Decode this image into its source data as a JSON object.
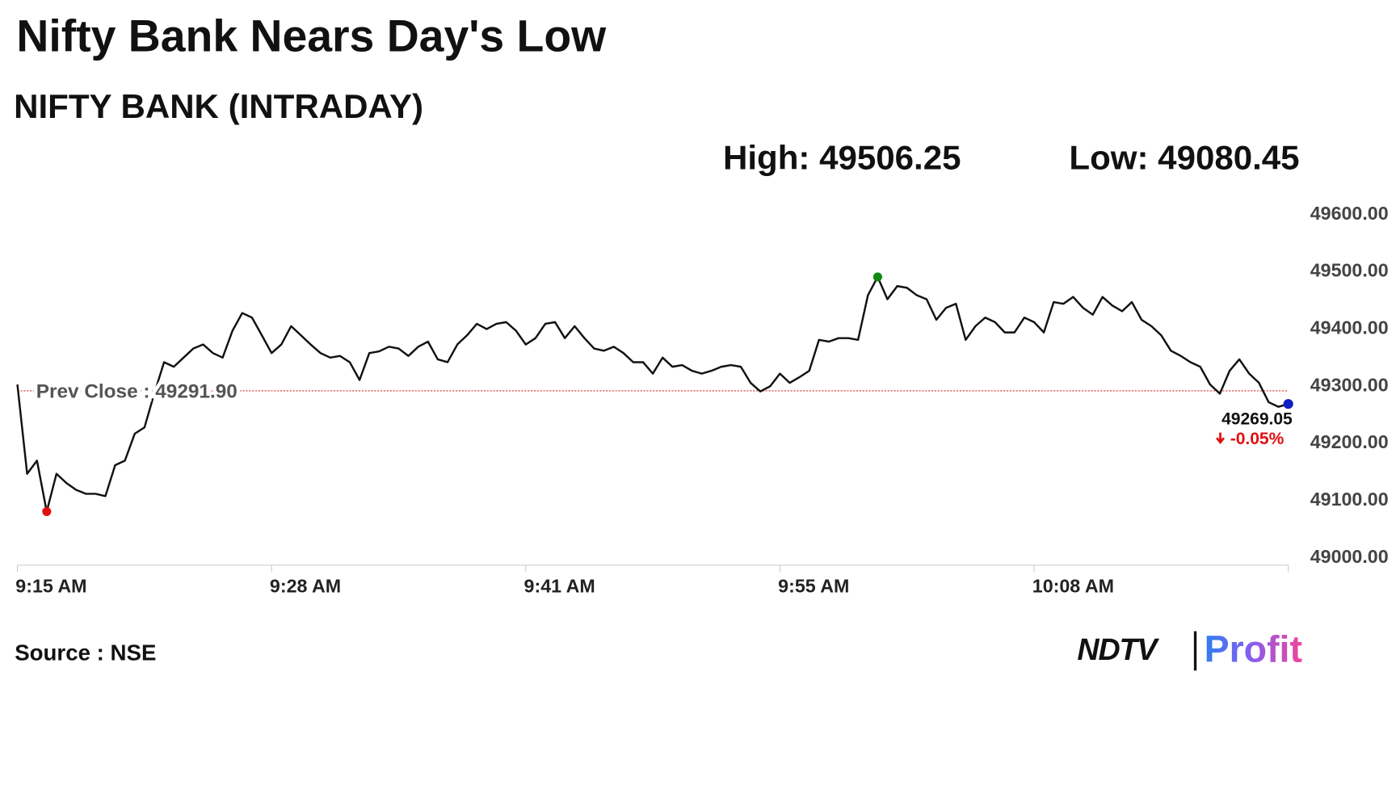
{
  "chart_data": {
    "type": "line",
    "title": "Nifty Bank Nears Day's Low",
    "subtitle": "NIFTY BANK (INTRADAY)",
    "high_label": "High: 49506.25",
    "low_label": "Low: 49080.45",
    "source": "Source : NSE",
    "logo": {
      "brand": "NDTV",
      "product": "Profit"
    },
    "color": "#111111",
    "categories": [
      "9:15 AM",
      null,
      null,
      null,
      null,
      null,
      null,
      null,
      null,
      null,
      null,
      null,
      null,
      null,
      null,
      null,
      null,
      null,
      null,
      null,
      null,
      null,
      null,
      null,
      null,
      null,
      "9:28 AM",
      null,
      null,
      null,
      null,
      null,
      null,
      null,
      null,
      null,
      null,
      null,
      null,
      null,
      null,
      null,
      null,
      null,
      null,
      null,
      null,
      null,
      null,
      null,
      null,
      null,
      "9:41 AM",
      null,
      null,
      null,
      null,
      null,
      null,
      null,
      null,
      null,
      null,
      null,
      null,
      null,
      null,
      null,
      null,
      null,
      null,
      null,
      null,
      null,
      null,
      null,
      null,
      null,
      "9:55 AM",
      null,
      null,
      null,
      null,
      null,
      null,
      null,
      null,
      null,
      null,
      null,
      null,
      null,
      null,
      null,
      null,
      null,
      null,
      null,
      null,
      null,
      null,
      null,
      null,
      null,
      "10:08 AM",
      null,
      null,
      null,
      null,
      null,
      null,
      null,
      null,
      null,
      null,
      null,
      null,
      null,
      null,
      null,
      null,
      null,
      null,
      null,
      null,
      null,
      null,
      null,
      null,
      null,
      null
    ],
    "values": [
      49303,
      49147,
      49170,
      49081,
      49147,
      49131,
      49119,
      49112,
      49112,
      49108,
      49162,
      49170,
      49217,
      49228,
      49287,
      49342,
      49334,
      49350,
      49366,
      49373,
      49358,
      49350,
      49397,
      49428,
      49420,
      49389,
      49358,
      49373,
      49405,
      49389,
      49373,
      49358,
      49350,
      49353,
      49342,
      49311,
      49358,
      49361,
      49369,
      49366,
      49353,
      49369,
      49378,
      49347,
      49342,
      49373,
      49389,
      49409,
      49400,
      49409,
      49412,
      49397,
      49373,
      49384,
      49409,
      49412,
      49384,
      49405,
      49384,
      49366,
      49362,
      49369,
      49358,
      49342,
      49342,
      49322,
      49350,
      49334,
      49337,
      49327,
      49322,
      49327,
      49334,
      49337,
      49334,
      49306,
      49291,
      49300,
      49322,
      49306,
      49316,
      49327,
      49381,
      49378,
      49384,
      49384,
      49381,
      49459,
      49491,
      49452,
      49475,
      49472,
      49459,
      49452,
      49416,
      49437,
      49444,
      49381,
      49405,
      49420,
      49412,
      49394,
      49394,
      49420,
      49412,
      49394,
      49447,
      49444,
      49456,
      49437,
      49425,
      49456,
      49441,
      49431,
      49447,
      49416,
      49405,
      49389,
      49362,
      49353,
      49342,
      49334,
      49303,
      49287,
      49327,
      49347,
      49322,
      49306,
      49272,
      49264,
      49269.05
    ],
    "last_change": "-0.05%",
    "prev_close": {
      "value": 49291.9,
      "label": "Prev Close : 49291.90"
    },
    "ylim": [
      48987.5,
      49615.6
    ],
    "yticks": [
      {
        "value": 49000,
        "label": "49000.00"
      },
      {
        "value": 49100,
        "label": "49100.00"
      },
      {
        "value": 49200,
        "label": "49200.00"
      },
      {
        "value": 49300,
        "label": "49300.00"
      },
      {
        "value": 49400,
        "label": "49400.00"
      },
      {
        "value": 49500,
        "label": "49500.00"
      },
      {
        "value": 49600,
        "label": "49600.00"
      }
    ]
  }
}
